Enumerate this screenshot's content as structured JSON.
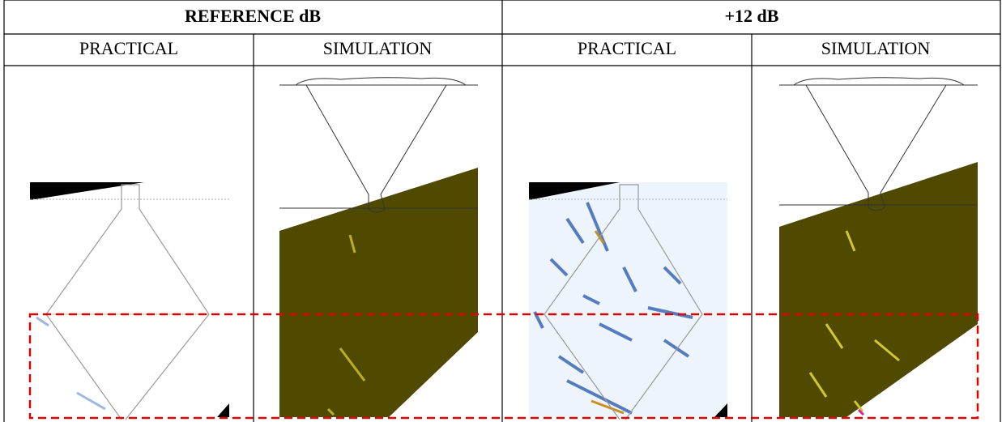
{
  "header": {
    "groups": [
      "REFERENCE dB",
      "+12 dB"
    ],
    "columns": [
      "PRACTICAL",
      "SIMULATION",
      "PRACTICAL",
      "SIMULATION"
    ]
  }
}
